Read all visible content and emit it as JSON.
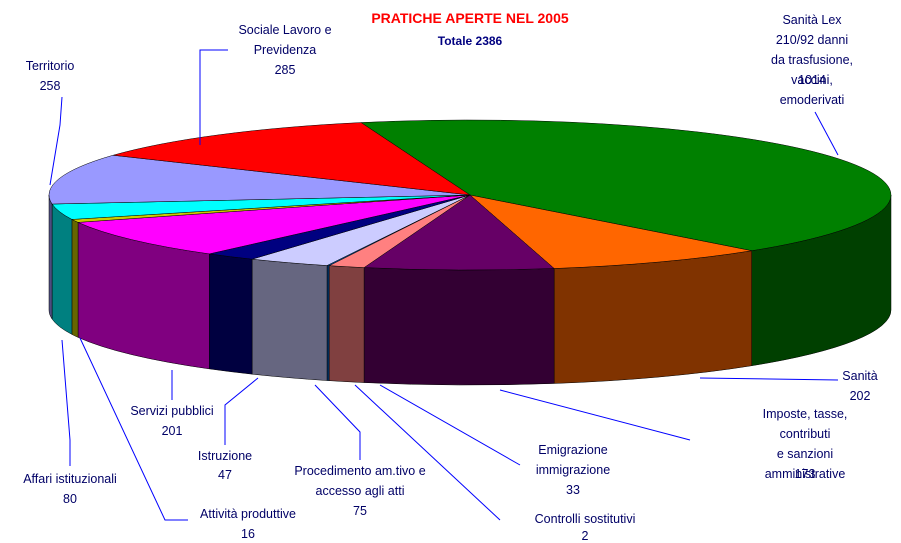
{
  "chart_data": {
    "type": "pie3d",
    "title": "PRATICHE APERTE NEL 2005",
    "subtitle": "Totale 2386",
    "categories": [
      "Sanità Lex 210/92 danni\nda trasfusione, vaccini,\nemoderivati",
      "Sanità",
      "Imposte, tasse, contributi\ne sanzioni\namministrative",
      "Emigrazione\nimmigrazione",
      "Controlli sostitutivi",
      "Procedimento am.tivo e\naccesso agli atti",
      "Istruzione",
      "Servizi pubblici",
      "Attività produttive",
      "Affari istituzionali",
      "Territorio",
      "Sociale Lavoro e\nPrevidenza"
    ],
    "values": [
      1014,
      202,
      173,
      33,
      2,
      75,
      47,
      201,
      16,
      80,
      258,
      285
    ],
    "colors": [
      "#008000",
      "#FF6600",
      "#660066",
      "#FF8080",
      "#0066CC",
      "#CCCCFF",
      "#000080",
      "#FF00FF",
      "#CCCC00",
      "#00FFFF",
      "#9999FF",
      "#FF0000"
    ]
  }
}
